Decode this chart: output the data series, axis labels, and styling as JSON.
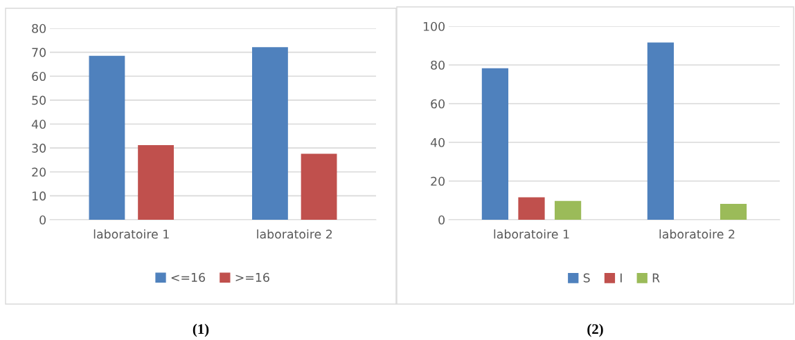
{
  "chart_data": [
    {
      "type": "bar",
      "categories": [
        "laboratoire 1",
        "laboratoire 2"
      ],
      "series": [
        {
          "name": "<=16",
          "color": "#4f81bd",
          "values": [
            68.5,
            72.1
          ]
        },
        {
          "name": ">=16",
          "color": "#c0504d",
          "values": [
            31.2,
            27.6
          ]
        }
      ],
      "ylim": [
        0,
        80
      ],
      "yticks": [
        0,
        10,
        20,
        30,
        40,
        50,
        60,
        70,
        80
      ],
      "grid": "y",
      "legend": "bottom",
      "annotations": [
        "(1)"
      ]
    },
    {
      "type": "bar",
      "categories": [
        "laboratoire 1",
        "laboratoire 2"
      ],
      "series": [
        {
          "name": "S",
          "color": "#4f81bd",
          "values": [
            78.3,
            91.6
          ]
        },
        {
          "name": "I",
          "color": "#c0504d",
          "values": [
            11.6,
            0
          ]
        },
        {
          "name": "R",
          "color": "#9bbb59",
          "values": [
            9.7,
            8.2
          ]
        }
      ],
      "ylim": [
        0,
        100
      ],
      "yticks": [
        0,
        20,
        40,
        60,
        80,
        100
      ],
      "grid": "y",
      "legend": "bottom",
      "annotations": [
        "(2)"
      ]
    }
  ]
}
